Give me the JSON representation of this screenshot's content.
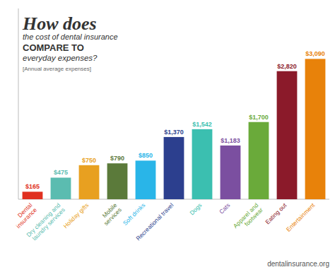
{
  "chart_data": {
    "type": "bar",
    "title": [
      "How does",
      "the cost of dental insurance",
      "COMPARE TO",
      "everyday expenses?"
    ],
    "subtitle": "[Annual average expenses]",
    "annotations": [
      "dentalinsurance.org"
    ],
    "categories": [
      "Dental\ninsurance",
      "Dry cleaning and\nlaundry services",
      "Holiday gifts",
      "Mobile\nservices",
      "Soft drinks",
      "Recreational travel",
      "Dogs",
      "Cats",
      "Apparel and\nfootwear",
      "Eating out",
      "Entertainment"
    ],
    "values": [
      165,
      475,
      750,
      790,
      850,
      1370,
      1542,
      1183,
      1700,
      2820,
      3090
    ],
    "value_labels": [
      "$165",
      "$475",
      "$750",
      "$790",
      "$850",
      "$1,370",
      "$1,542",
      "$1,183",
      "$1,700",
      "$2,820",
      "$3,090"
    ],
    "colors": [
      "#e03020",
      "#5bbcb0",
      "#e8a020",
      "#5b7a3a",
      "#29b5e8",
      "#2c3f8e",
      "#3bbfb0",
      "#7b4fa0",
      "#6aaa3a",
      "#8b1a2a",
      "#e8820a"
    ],
    "ylim": [
      0,
      4200
    ],
    "data_labels": true,
    "tick_labels": "x",
    "grid": false
  }
}
